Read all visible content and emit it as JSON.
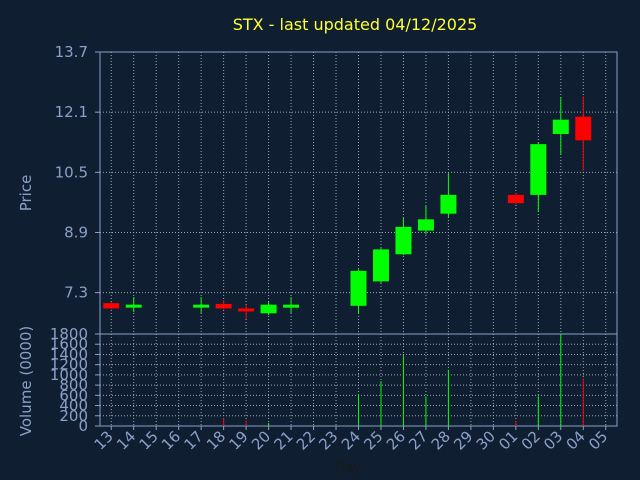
{
  "chart_data": {
    "type": "candlestick",
    "title": "STX - last updated 04/12/2025",
    "ylabel_price": "Price",
    "ylabel_volume": "Volume (0000)",
    "xlabel": "Day",
    "price_ylim": [
      6.2,
      13.7
    ],
    "price_ticks": [
      "13.7",
      "12.1",
      "10.5",
      "8.9",
      "7.3"
    ],
    "price_tick_values": [
      13.7,
      12.1,
      10.5,
      8.9,
      7.3
    ],
    "volume_ylim": [
      0,
      1800
    ],
    "volume_ticks": [
      "1800",
      "1600",
      "1400",
      "1200",
      "1000",
      "800",
      "600",
      "400",
      "200",
      "0"
    ],
    "volume_tick_values": [
      1800,
      1600,
      1400,
      1200,
      1000,
      800,
      600,
      400,
      200,
      0
    ],
    "x_labels": [
      "13",
      "14",
      "15",
      "16",
      "17",
      "18",
      "19",
      "20",
      "21",
      "22",
      "23",
      "24",
      "25",
      "26",
      "27",
      "28",
      "29",
      "30",
      "01",
      "02",
      "03",
      "04",
      "05"
    ],
    "candles": [
      {
        "i": 0,
        "open": 7.02,
        "close": 6.88,
        "high": 7.05,
        "low": 6.85,
        "volume": 0
      },
      {
        "i": 1,
        "open": 6.92,
        "close": 6.98,
        "high": 7.18,
        "low": 6.78,
        "volume": 0
      },
      {
        "i": 4,
        "open": 6.92,
        "close": 6.98,
        "high": 7.18,
        "low": 6.75,
        "volume": 0
      },
      {
        "i": 5,
        "open": 7.0,
        "close": 6.88,
        "high": 7.1,
        "low": 6.85,
        "volume": 150
      },
      {
        "i": 6,
        "open": 6.88,
        "close": 6.8,
        "high": 6.98,
        "low": 6.6,
        "volume": 110
      },
      {
        "i": 7,
        "open": 6.75,
        "close": 6.98,
        "high": 7.05,
        "low": 6.7,
        "volume": 60
      },
      {
        "i": 8,
        "open": 6.93,
        "close": 6.98,
        "high": 7.18,
        "low": 6.75,
        "volume": 0
      },
      {
        "i": 11,
        "open": 6.95,
        "close": 7.88,
        "high": 7.92,
        "low": 6.75,
        "volume": 620
      },
      {
        "i": 12,
        "open": 7.6,
        "close": 8.45,
        "high": 8.5,
        "low": 7.55,
        "volume": 880
      },
      {
        "i": 13,
        "open": 8.32,
        "close": 9.05,
        "high": 9.3,
        "low": 8.3,
        "volume": 1380
      },
      {
        "i": 14,
        "open": 8.95,
        "close": 9.25,
        "high": 9.62,
        "low": 8.85,
        "volume": 580
      },
      {
        "i": 15,
        "open": 9.4,
        "close": 9.9,
        "high": 10.48,
        "low": 9.3,
        "volume": 1100
      },
      {
        "i": 18,
        "open": 9.9,
        "close": 9.68,
        "high": 9.95,
        "low": 9.65,
        "volume": 100
      },
      {
        "i": 19,
        "open": 9.9,
        "close": 11.25,
        "high": 11.3,
        "low": 9.45,
        "volume": 580
      },
      {
        "i": 20,
        "open": 11.52,
        "close": 11.9,
        "high": 12.5,
        "low": 10.98,
        "volume": 1800
      },
      {
        "i": 21,
        "open": 11.98,
        "close": 11.35,
        "high": 12.52,
        "low": 10.55,
        "volume": 930
      }
    ],
    "up_color": "#00ff00",
    "down_color": "#ff0000"
  }
}
